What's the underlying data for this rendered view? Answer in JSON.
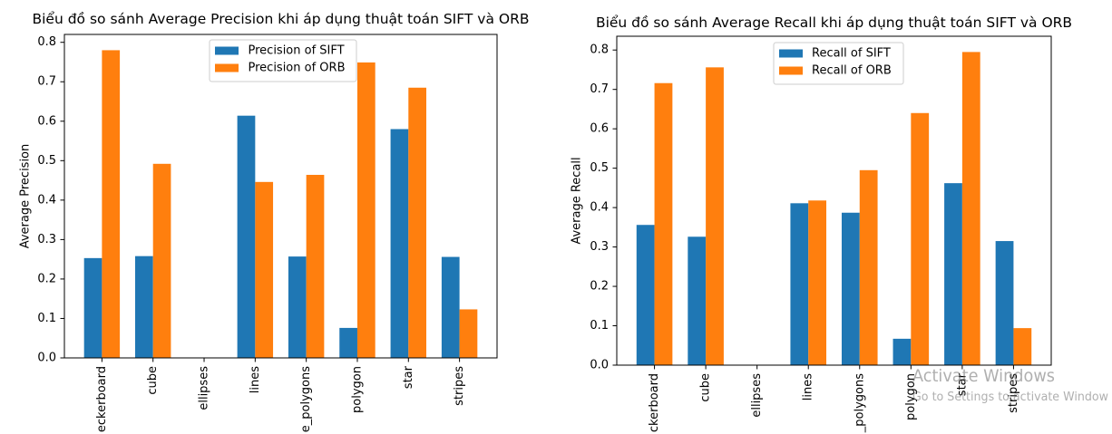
{
  "chart_data": [
    {
      "type": "bar",
      "title": "Biểu đồ so sánh Average Precision khi áp dụng thuật toán SIFT và ORB",
      "ylabel": "Average Precision",
      "categories": [
        "eckerboard",
        "cube",
        "ellipses",
        "lines",
        "e_polygons",
        "polygon",
        "star",
        "stripes"
      ],
      "series": [
        {
          "name": "Precision of SIFT",
          "color": "#1f77b4",
          "values": [
            0.253,
            0.258,
            0,
            0.614,
            0.257,
            0.076,
            0.58,
            0.256
          ]
        },
        {
          "name": "Precision of ORB",
          "color": "#ff7f0e",
          "values": [
            0.78,
            0.492,
            0,
            0.446,
            0.464,
            0.749,
            0.685,
            0.123
          ]
        }
      ],
      "ylim": [
        0,
        0.82
      ],
      "yticks": [
        "0.0",
        "0.1",
        "0.2",
        "0.3",
        "0.4",
        "0.5",
        "0.6",
        "0.7",
        "0.8"
      ],
      "grid": false,
      "legend": "upper center"
    },
    {
      "type": "bar",
      "title": "Biểu đồ so sánh Average Recall khi áp dụng thuật toán SIFT và ORB",
      "ylabel": "Average Recall",
      "categories": [
        "ckerboard",
        "cube",
        "ellipses",
        "lines",
        "_polygons",
        "polygon",
        "star",
        "stripes"
      ],
      "series": [
        {
          "name": "Recall of SIFT",
          "color": "#1f77b4",
          "values": [
            0.356,
            0.326,
            0,
            0.411,
            0.387,
            0.067,
            0.462,
            0.315
          ]
        },
        {
          "name": "Recall of ORB",
          "color": "#ff7f0e",
          "values": [
            0.716,
            0.756,
            0,
            0.418,
            0.495,
            0.64,
            0.795,
            0.094
          ]
        }
      ],
      "ylim": [
        0,
        0.835
      ],
      "yticks": [
        "0.0",
        "0.1",
        "0.2",
        "0.3",
        "0.4",
        "0.5",
        "0.6",
        "0.7",
        "0.8"
      ],
      "grid": false,
      "legend": "upper center"
    }
  ],
  "watermark": {
    "title": "Activate Windows",
    "subtitle": "Go to Settings to activate Window"
  }
}
